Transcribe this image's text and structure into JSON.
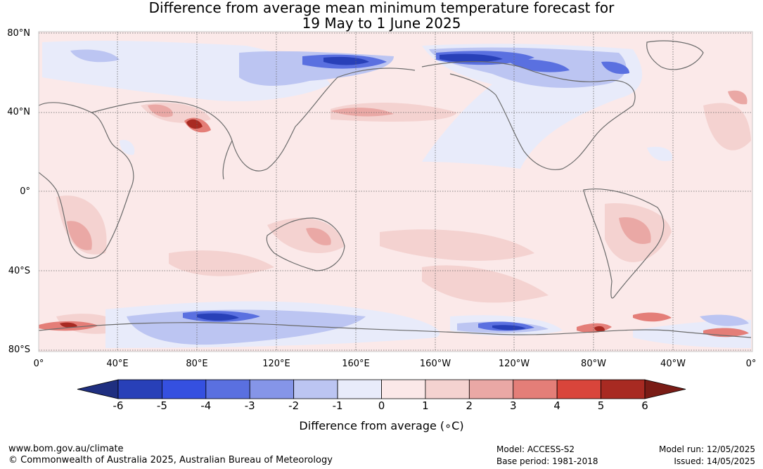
{
  "title_line1": "Difference from average mean minimum temperature forecast for",
  "title_line2": "19 May to 1 June 2025",
  "lat_labels": [
    "80°N",
    "40°N",
    "0°",
    "40°S",
    "80°S"
  ],
  "lon_labels": [
    "0°",
    "40°E",
    "80°E",
    "120°E",
    "160°E",
    "160°W",
    "120°W",
    "80°W",
    "40°W",
    "0°"
  ],
  "colorbar": {
    "label": "Difference from average (∘C)",
    "ticks": [
      "-6",
      "-5",
      "-4",
      "-3",
      "-2",
      "-1",
      "0",
      "1",
      "2",
      "3",
      "4",
      "5",
      "6"
    ],
    "colors": [
      "#1f2f80",
      "#2840b8",
      "#3550e0",
      "#5a70e0",
      "#8595e8",
      "#bcc5f2",
      "#e8ebfa",
      "#fbe8e8",
      "#f4d2d0",
      "#eaa8a5",
      "#e47e78",
      "#d9453b",
      "#a82a22",
      "#7a1c16"
    ]
  },
  "footer": {
    "url": "www.bom.gov.au/climate",
    "copyright": "© Commonwealth of Australia 2025, Australian Bureau of Meteorology",
    "model": "Model: ACCESS-S2",
    "base_period": "Base period: 1981-2018",
    "model_run": "Model run: 12/05/2025",
    "issued": "Issued: 14/05/2025"
  },
  "map": {
    "regions": [
      {
        "name": "arctic-asia-cool",
        "category": "-1 to 0"
      },
      {
        "name": "siberia-strong-cool",
        "category": "-4 to -3"
      },
      {
        "name": "alaska-canada-strong-cool",
        "category": "-5 to -4"
      },
      {
        "name": "tibet-warm-spot",
        "category": "4 to 6"
      },
      {
        "name": "antarctica-east-cool",
        "category": "-5 to -3"
      },
      {
        "name": "antarctic-peninsula-warm",
        "category": "3 to 5"
      },
      {
        "name": "weddell-warm",
        "category": "2 to 4"
      },
      {
        "name": "south-america-warm",
        "category": "1 to 3"
      },
      {
        "name": "southern-africa-warm",
        "category": "1 to 3"
      },
      {
        "name": "australia-warm",
        "category": "1 to 3"
      }
    ]
  }
}
